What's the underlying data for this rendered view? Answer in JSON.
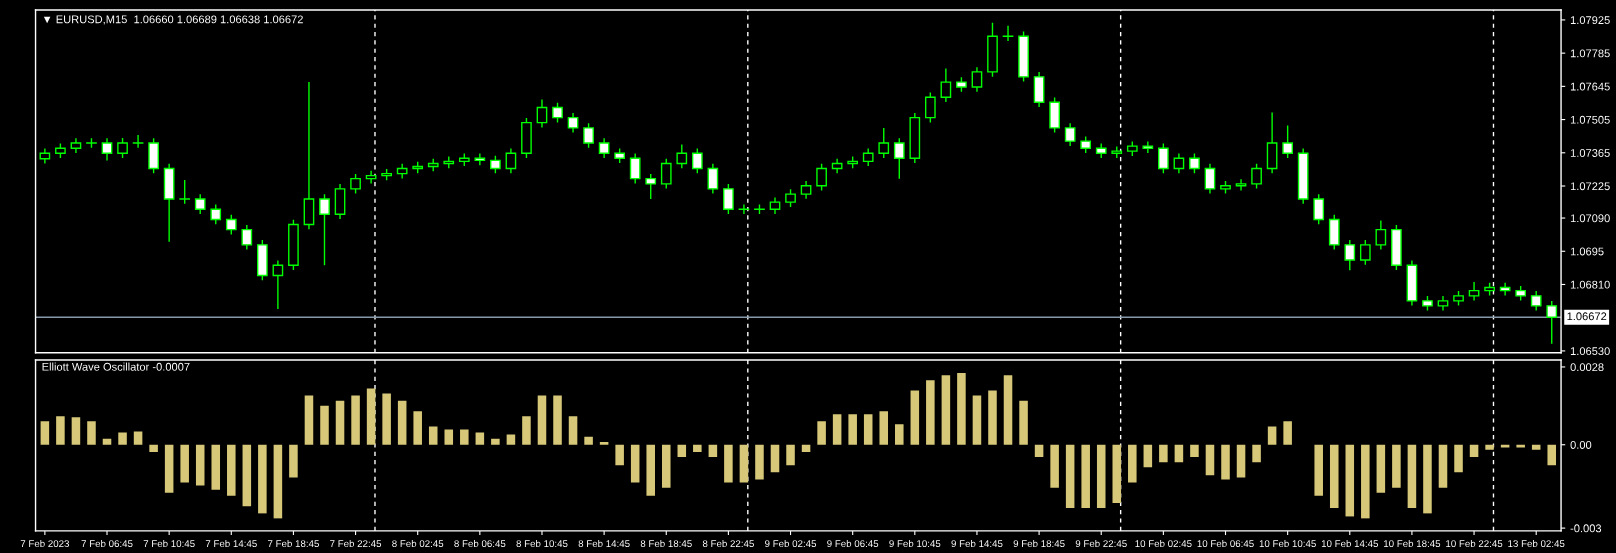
{
  "chart_data": [
    {
      "type": "candlestick",
      "title": "▼ EURUSD,M15  1.06660 1.06689 1.06638 1.06672",
      "color": "#00ff00",
      "tick_labels": "y",
      "categories": [
        null,
        null,
        null,
        null,
        null,
        null,
        null,
        null,
        null,
        null,
        null,
        null,
        null,
        null,
        null,
        null,
        null,
        null,
        null,
        null,
        null,
        null,
        null,
        null,
        null,
        null,
        null,
        null,
        null,
        null,
        null,
        null,
        null,
        null,
        null,
        null,
        null,
        null,
        null,
        null,
        null,
        null,
        null,
        null,
        null,
        null,
        null,
        null,
        null,
        null,
        null,
        null,
        null,
        null,
        null,
        null,
        null,
        null,
        null,
        null,
        null,
        null,
        null,
        null,
        null,
        null,
        null,
        null,
        null,
        null,
        null,
        null,
        null,
        null,
        null,
        null,
        null,
        null,
        null,
        null,
        null,
        null,
        null,
        null,
        null,
        null,
        null,
        null,
        null,
        null,
        null,
        null,
        null,
        null,
        null,
        null,
        null,
        null
      ],
      "ohlc": [
        [
          1.0734,
          1.07383,
          1.0732,
          1.07363
        ],
        [
          1.07363,
          1.07404,
          1.07343,
          1.07384
        ],
        [
          1.07384,
          1.07426,
          1.07364,
          1.07406
        ],
        [
          1.07406,
          1.07426,
          1.07386,
          1.07406
        ],
        [
          1.07406,
          1.07426,
          1.07333,
          1.07363
        ],
        [
          1.07363,
          1.07427,
          1.07343,
          1.07406
        ],
        [
          1.07406,
          1.0744,
          1.07386,
          1.07406
        ],
        [
          1.07406,
          1.07426,
          1.07279,
          1.07299
        ],
        [
          1.07299,
          1.07319,
          1.0699,
          1.0717
        ],
        [
          1.0717,
          1.0725,
          1.0715,
          1.0717
        ],
        [
          1.0717,
          1.0719,
          1.07107,
          1.07127
        ],
        [
          1.07127,
          1.07147,
          1.07064,
          1.07084
        ],
        [
          1.07084,
          1.07104,
          1.07021,
          1.07041
        ],
        [
          1.07041,
          1.07061,
          1.06957,
          1.06977
        ],
        [
          1.06977,
          1.06997,
          1.06828,
          1.06848
        ],
        [
          1.06848,
          1.06911,
          1.06707,
          1.06891
        ],
        [
          1.06891,
          1.07083,
          1.06871,
          1.07063
        ],
        [
          1.07063,
          1.07663,
          1.07043,
          1.0717
        ],
        [
          1.0717,
          1.0719,
          1.06891,
          1.07106
        ],
        [
          1.07106,
          1.07233,
          1.07086,
          1.07213
        ],
        [
          1.07213,
          1.07276,
          1.07193,
          1.07256
        ],
        [
          1.07256,
          1.07289,
          1.07236,
          1.07269
        ],
        [
          1.07269,
          1.07297,
          1.07249,
          1.07277
        ],
        [
          1.07277,
          1.07319,
          1.07257,
          1.07299
        ],
        [
          1.07299,
          1.07327,
          1.07279,
          1.07307
        ],
        [
          1.07307,
          1.0734,
          1.07287,
          1.0732
        ],
        [
          1.0732,
          1.07349,
          1.073,
          1.07329
        ],
        [
          1.07329,
          1.07362,
          1.07309,
          1.07342
        ],
        [
          1.07342,
          1.07362,
          1.07313,
          1.07333
        ],
        [
          1.07333,
          1.07353,
          1.07279,
          1.07299
        ],
        [
          1.07299,
          1.07383,
          1.07279,
          1.07363
        ],
        [
          1.07363,
          1.07512,
          1.07343,
          1.07492
        ],
        [
          1.07492,
          1.0759,
          1.07472,
          1.07556
        ],
        [
          1.07556,
          1.07576,
          1.07493,
          1.07513
        ],
        [
          1.07513,
          1.07533,
          1.0745,
          1.0747
        ],
        [
          1.0747,
          1.0749,
          1.07386,
          1.07406
        ],
        [
          1.07406,
          1.07426,
          1.07343,
          1.07363
        ],
        [
          1.07363,
          1.07383,
          1.07322,
          1.07342
        ],
        [
          1.07342,
          1.07362,
          1.07236,
          1.07256
        ],
        [
          1.07256,
          1.07276,
          1.0717,
          1.07234
        ],
        [
          1.07234,
          1.0734,
          1.07214,
          1.0732
        ],
        [
          1.0732,
          1.074,
          1.073,
          1.07363
        ],
        [
          1.07363,
          1.07383,
          1.07279,
          1.07299
        ],
        [
          1.07299,
          1.07319,
          1.07193,
          1.07213
        ],
        [
          1.07213,
          1.07233,
          1.07107,
          1.07127
        ],
        [
          1.07127,
          1.07147,
          1.07107,
          1.07127
        ],
        [
          1.07127,
          1.07147,
          1.07107,
          1.07127
        ],
        [
          1.07127,
          1.07177,
          1.07107,
          1.07157
        ],
        [
          1.07157,
          1.07211,
          1.07137,
          1.07191
        ],
        [
          1.07191,
          1.07246,
          1.07171,
          1.07226
        ],
        [
          1.07226,
          1.07319,
          1.07206,
          1.07299
        ],
        [
          1.07299,
          1.0734,
          1.07279,
          1.0732
        ],
        [
          1.0732,
          1.07349,
          1.073,
          1.07329
        ],
        [
          1.07329,
          1.07383,
          1.07309,
          1.07363
        ],
        [
          1.07363,
          1.0747,
          1.07343,
          1.07406
        ],
        [
          1.07406,
          1.07426,
          1.07256,
          1.07342
        ],
        [
          1.07342,
          1.07533,
          1.07322,
          1.07513
        ],
        [
          1.07513,
          1.07619,
          1.07493,
          1.07599
        ],
        [
          1.07599,
          1.0772,
          1.07579,
          1.07663
        ],
        [
          1.07663,
          1.07683,
          1.07622,
          1.07642
        ],
        [
          1.07642,
          1.07726,
          1.07622,
          1.07706
        ],
        [
          1.07706,
          1.07913,
          1.07686,
          1.07856
        ],
        [
          1.07856,
          1.079,
          1.07836,
          1.07856
        ],
        [
          1.07856,
          1.07876,
          1.07665,
          1.07685
        ],
        [
          1.07685,
          1.07705,
          1.07558,
          1.07578
        ],
        [
          1.07578,
          1.07598,
          1.0745,
          1.0747
        ],
        [
          1.0747,
          1.0749,
          1.07394,
          1.07414
        ],
        [
          1.07414,
          1.07434,
          1.07364,
          1.07384
        ],
        [
          1.07384,
          1.07404,
          1.07343,
          1.07363
        ],
        [
          1.07363,
          1.07392,
          1.07343,
          1.07372
        ],
        [
          1.07372,
          1.07413,
          1.07352,
          1.07393
        ],
        [
          1.07393,
          1.07413,
          1.07364,
          1.07384
        ],
        [
          1.07384,
          1.07404,
          1.07279,
          1.07299
        ],
        [
          1.07299,
          1.07362,
          1.07279,
          1.07342
        ],
        [
          1.07342,
          1.07362,
          1.07279,
          1.07299
        ],
        [
          1.07299,
          1.07319,
          1.07193,
          1.07213
        ],
        [
          1.07213,
          1.07246,
          1.07193,
          1.07226
        ],
        [
          1.07226,
          1.07254,
          1.07206,
          1.07234
        ],
        [
          1.07234,
          1.07319,
          1.07214,
          1.07299
        ],
        [
          1.07299,
          1.07535,
          1.07279,
          1.07406
        ],
        [
          1.07406,
          1.0748,
          1.07343,
          1.07363
        ],
        [
          1.07363,
          1.07383,
          1.0715,
          1.0717
        ],
        [
          1.0717,
          1.0719,
          1.07064,
          1.07084
        ],
        [
          1.07084,
          1.07104,
          1.06957,
          1.06977
        ],
        [
          1.06977,
          1.06997,
          1.0687,
          1.06913
        ],
        [
          1.06913,
          1.06997,
          1.06893,
          1.06977
        ],
        [
          1.06977,
          1.0708,
          1.06957,
          1.07041
        ],
        [
          1.07041,
          1.07061,
          1.06871,
          1.06891
        ],
        [
          1.06891,
          1.06911,
          1.06721,
          1.06741
        ],
        [
          1.06741,
          1.06761,
          1.067,
          1.0672
        ],
        [
          1.0672,
          1.06761,
          1.067,
          1.06741
        ],
        [
          1.06741,
          1.06782,
          1.06721,
          1.06762
        ],
        [
          1.06762,
          1.0682,
          1.06742,
          1.06784
        ],
        [
          1.06784,
          1.06817,
          1.06764,
          1.06797
        ],
        [
          1.06797,
          1.06817,
          1.06764,
          1.06784
        ],
        [
          1.06784,
          1.06804,
          1.06742,
          1.06762
        ],
        [
          1.06762,
          1.06782,
          1.067,
          1.0672
        ],
        [
          1.0672,
          1.0674,
          1.0656,
          1.06672
        ]
      ],
      "ylim": [
        1.06522,
        1.07967
      ],
      "yticks": [
        1.07925,
        1.07785,
        1.07645,
        1.07505,
        1.07365,
        1.07225,
        {
          "value": 1.0709,
          "label": "1.07090"
        },
        1.0695,
        {
          "value": 1.0681,
          "label": "1.06810"
        },
        {
          "value": 1.0653,
          "label": "1.06530"
        }
      ],
      "ref_lines": [
        {
          "axis": "y",
          "value": 1.06672,
          "label": "1.06672",
          "color": "#8899aa",
          "line_style": "solid"
        }
      ]
    },
    {
      "type": "bar",
      "title": "Elliott Wave Oscillator -0.0007",
      "color": "#d6c878",
      "categories": [
        "7 Feb 2023",
        null,
        null,
        null,
        "7 Feb 06:45",
        null,
        null,
        null,
        "7 Feb 10:45",
        null,
        null,
        null,
        "7 Feb 14:45",
        null,
        null,
        null,
        "7 Feb 18:45",
        null,
        null,
        null,
        "7 Feb 22:45",
        null,
        null,
        null,
        "8 Feb 02:45",
        null,
        null,
        null,
        "8 Feb 06:45",
        null,
        null,
        null,
        "8 Feb 10:45",
        null,
        null,
        null,
        "8 Feb 14:45",
        null,
        null,
        null,
        "8 Feb 18:45",
        null,
        null,
        null,
        "8 Feb 22:45",
        null,
        null,
        null,
        "9 Feb 02:45",
        null,
        null,
        null,
        "9 Feb 06:45",
        null,
        null,
        null,
        "9 Feb 10:45",
        null,
        null,
        null,
        "9 Feb 14:45",
        null,
        null,
        null,
        "9 Feb 18:45",
        null,
        null,
        null,
        "9 Feb 22:45",
        null,
        null,
        null,
        "10 Feb 02:45",
        null,
        null,
        null,
        "10 Feb 06:45",
        null,
        null,
        null,
        "10 Feb 10:45",
        null,
        null,
        null,
        "10 Feb 14:45",
        null,
        null,
        null,
        "10 Feb 18:45",
        null,
        null,
        null,
        "10 Feb 22:45",
        null,
        null,
        null,
        "13 Feb 02:45",
        null
      ],
      "values": [
        0.00085,
        0.00103,
        0.00099,
        0.00085,
        0.00022,
        0.00044,
        0.00048,
        -0.00026,
        -0.00173,
        -0.00136,
        -0.00147,
        -0.00162,
        -0.00184,
        -0.00221,
        -0.00247,
        -0.00265,
        -0.00118,
        0.00177,
        0.0014,
        0.00158,
        0.00177,
        0.00202,
        0.00184,
        0.00158,
        0.00121,
        0.00066,
        0.00055,
        0.00055,
        0.00044,
        0.00022,
        0.00037,
        0.00103,
        0.00177,
        0.00177,
        0.00103,
        0.00029,
        0.0001,
        -0.00074,
        -0.00136,
        -0.00184,
        -0.00155,
        -0.00044,
        -0.00026,
        -0.00044,
        -0.00136,
        -0.00136,
        -0.00125,
        -0.00099,
        -0.00074,
        -0.00026,
        0.00085,
        0.0011,
        0.0011,
        0.0011,
        0.00121,
        0.00074,
        0.00195,
        0.00232,
        0.0025,
        0.00258,
        0.00177,
        0.00195,
        0.0025,
        0.00158,
        -0.00044,
        -0.00155,
        -0.00228,
        -0.00228,
        -0.00228,
        -0.0021,
        -0.00136,
        -0.00081,
        -0.00063,
        -0.00063,
        -0.00044,
        -0.0011,
        -0.00125,
        -0.00118,
        -0.00063,
        0.00066,
        0.00085,
        0,
        -0.00184,
        -0.00228,
        -0.00258,
        -0.00265,
        -0.00173,
        -0.00155,
        -0.00228,
        -0.00247,
        -0.00155,
        -0.00099,
        -0.00044,
        -0.00018,
        -0.0001,
        -0.0001,
        -0.00018,
        -0.00074
      ],
      "ylim": [
        -0.0031,
        0.00305
      ],
      "yticks": [
        0.0028,
        {
          "value": 0,
          "label": "0.00"
        },
        -0.003
      ]
    }
  ]
}
